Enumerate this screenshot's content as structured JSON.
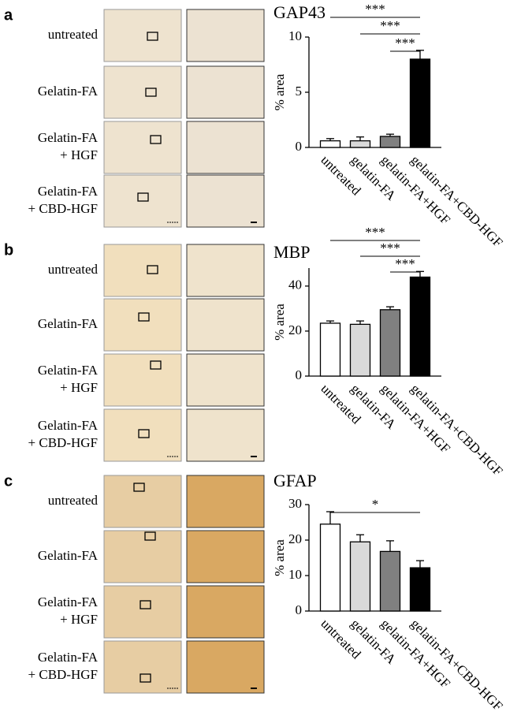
{
  "panels": [
    {
      "letter": "a",
      "row_labels": [
        "untreated",
        "Gelatin-FA",
        [
          "Gelatin-FA",
          "+ HGF"
        ],
        [
          "Gelatin-FA",
          "+ CBD-HGF"
        ]
      ]
    },
    {
      "letter": "b",
      "row_labels": [
        "untreated",
        "Gelatin-FA",
        [
          "Gelatin-FA",
          "+ HGF"
        ],
        [
          "Gelatin-FA",
          "+ CBD-HGF"
        ]
      ]
    },
    {
      "letter": "c",
      "row_labels": [
        "untreated",
        "Gelatin-FA",
        [
          "Gelatin-FA",
          "+ HGF"
        ],
        [
          "Gelatin-FA",
          "+ CBD-HGF"
        ]
      ]
    }
  ],
  "chart_data": [
    {
      "type": "bar",
      "title": "GAP43",
      "y_label": "% area",
      "categories": [
        "untreated",
        "gelatin-FA",
        "gelatin-FA+HGF",
        "gelatin-FA+CBD-HGF"
      ],
      "colors": [
        "#ffffff",
        "#d9d9d9",
        "#808080",
        "#000000"
      ],
      "values": [
        0.6,
        0.6,
        1.0,
        8.0
      ],
      "errors": [
        0.2,
        0.35,
        0.2,
        0.8
      ],
      "ylim": [
        0,
        10
      ],
      "yticks": [
        0,
        5,
        10
      ],
      "comparisons": [
        {
          "label": "***",
          "from": "untreated",
          "to": "gelatin-FA+CBD-HGF"
        },
        {
          "label": "***",
          "from": "gelatin-FA",
          "to": "gelatin-FA+CBD-HGF"
        },
        {
          "label": "***",
          "from": "gelatin-FA+HGF",
          "to": "gelatin-FA+CBD-HGF"
        }
      ]
    },
    {
      "type": "bar",
      "title": "MBP",
      "y_label": "% area",
      "categories": [
        "untreated",
        "gelatin-FA",
        "gelatin-FA+HGF",
        "gelatin-FA+CBD-HGF"
      ],
      "colors": [
        "#ffffff",
        "#d9d9d9",
        "#808080",
        "#000000"
      ],
      "values": [
        23.5,
        23,
        29.5,
        44
      ],
      "errors": [
        1,
        1.5,
        1.3,
        2.5
      ],
      "ylim": [
        0,
        48
      ],
      "yticks": [
        0,
        20,
        40
      ],
      "comparisons": [
        {
          "label": "***",
          "from": "untreated",
          "to": "gelatin-FA+CBD-HGF"
        },
        {
          "label": "***",
          "from": "gelatin-FA",
          "to": "gelatin-FA+CBD-HGF"
        },
        {
          "label": "***",
          "from": "gelatin-FA+HGF",
          "to": "gelatin-FA+CBD-HGF"
        }
      ]
    },
    {
      "type": "bar",
      "title": "GFAP",
      "y_label": "% area",
      "categories": [
        "untreated",
        "gelatin-FA",
        "gelatin-FA+HGF",
        "gelatin-FA+CBD-HGF"
      ],
      "colors": [
        "#ffffff",
        "#d9d9d9",
        "#808080",
        "#000000"
      ],
      "values": [
        24.5,
        19.5,
        16.8,
        12.2
      ],
      "errors": [
        3.5,
        2,
        3,
        2
      ],
      "ylim": [
        0,
        30
      ],
      "yticks": [
        0,
        10,
        20,
        30
      ],
      "comparisons": [
        {
          "label": "*",
          "from": "untreated",
          "to": "gelatin-FA+CBD-HGF"
        }
      ]
    }
  ]
}
